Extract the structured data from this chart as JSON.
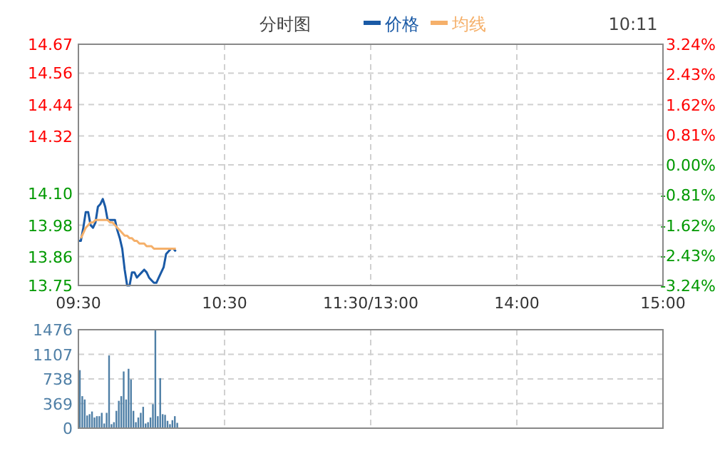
{
  "chart_data": [
    {
      "type": "line",
      "title": "分时图",
      "annotations": [
        "10:11"
      ],
      "legend": "top",
      "categories": [
        "09:30",
        null,
        null,
        null,
        null,
        null,
        null,
        null,
        null,
        null,
        null,
        null,
        null,
        null,
        null,
        null,
        null,
        null,
        null,
        null,
        null,
        null,
        null,
        null,
        null,
        null,
        null,
        null,
        null,
        null,
        null,
        null,
        null,
        null,
        null,
        null,
        null,
        null,
        null,
        null,
        null,
        null,
        null,
        null,
        null,
        null,
        null,
        null,
        null,
        null,
        null,
        null,
        null,
        null,
        null,
        null,
        null,
        null,
        null,
        null,
        "10:30",
        null,
        null,
        null,
        null,
        null,
        null,
        null,
        null,
        null,
        null,
        null,
        null,
        null,
        null,
        null,
        null,
        null,
        null,
        null,
        null,
        null,
        null,
        null,
        null,
        null,
        null,
        null,
        null,
        null,
        null,
        null,
        null,
        null,
        null,
        null,
        null,
        null,
        null,
        null,
        null,
        null,
        null,
        null,
        null,
        null,
        null,
        null,
        null,
        null,
        null,
        null,
        null,
        null,
        null,
        null,
        null,
        null,
        null,
        null,
        "11:30/13:00",
        null,
        null,
        null,
        null,
        null,
        null,
        null,
        null,
        null,
        null,
        null,
        null,
        null,
        null,
        null,
        null,
        null,
        null,
        null,
        null,
        null,
        null,
        null,
        null,
        null,
        null,
        null,
        null,
        null,
        null,
        null,
        null,
        null,
        null,
        null,
        null,
        null,
        null,
        null,
        null,
        null,
        null,
        null,
        null,
        null,
        null,
        null,
        null,
        null,
        null,
        null,
        null,
        null,
        null,
        null,
        null,
        null,
        null,
        null,
        "14:00",
        null,
        null,
        null,
        null,
        null,
        null,
        null,
        null,
        null,
        null,
        null,
        null,
        null,
        null,
        null,
        null,
        null,
        null,
        null,
        null,
        null,
        null,
        null,
        null,
        null,
        null,
        null,
        null,
        null,
        null,
        null,
        null,
        null,
        null,
        null,
        null,
        null,
        null,
        null,
        null,
        null,
        null,
        null,
        null,
        null,
        null,
        null,
        null,
        null,
        null,
        null,
        null,
        null,
        null,
        null,
        null,
        null,
        null,
        null,
        "15:00"
      ],
      "ylim": [
        13.75,
        14.67
      ],
      "yticks": [
        13.75,
        13.86,
        13.98,
        {
          "value": 14.1,
          "label": "14.10"
        },
        {
          "value": 14.21,
          "label": null
        },
        14.32,
        14.44,
        14.56,
        14.67
      ],
      "y2lim": [
        -3.24,
        3.24
      ],
      "y2ticks": [
        {
          "value": -3.24,
          "label": "-3.24%"
        },
        {
          "value": -2.43,
          "label": "-2.43%"
        },
        {
          "value": -1.62,
          "label": "-1.62%"
        },
        {
          "value": -0.81,
          "label": "-0.81%"
        },
        {
          "value": 0,
          "label": "0.00%"
        },
        {
          "value": 0.81,
          "label": "0.81%"
        },
        {
          "value": 1.62,
          "label": "1.62%"
        },
        {
          "value": 2.43,
          "label": "2.43%"
        },
        {
          "value": 3.24,
          "label": "3.24%"
        }
      ],
      "grid": true,
      "series": [
        {
          "name": "价格",
          "color": "#1a5aa6",
          "values": [
            13.92,
            13.92,
            13.97,
            14.03,
            14.03,
            13.98,
            13.97,
            13.99,
            14.05,
            14.06,
            14.08,
            14.05,
            14.0,
            14.0,
            14.0,
            14.0,
            13.96,
            13.93,
            13.89,
            13.81,
            13.75,
            13.75,
            13.8,
            13.8,
            13.78,
            13.79,
            13.8,
            13.81,
            13.8,
            13.78,
            13.77,
            13.76,
            13.76,
            13.78,
            13.8,
            13.82,
            13.87,
            13.88,
            13.89,
            13.89,
            13.88,
            null,
            null,
            null,
            null,
            null,
            null,
            null,
            null,
            null,
            null,
            null,
            null,
            null,
            null,
            null,
            null,
            null,
            null,
            null,
            null,
            null,
            null,
            null,
            null,
            null,
            null,
            null,
            null,
            null,
            null,
            null,
            null,
            null,
            null,
            null,
            null,
            null,
            null,
            null,
            null,
            null,
            null,
            null,
            null,
            null,
            null,
            null,
            null,
            null,
            null,
            null,
            null,
            null,
            null,
            null,
            null,
            null,
            null,
            null,
            null,
            null,
            null,
            null,
            null,
            null,
            null,
            null,
            null,
            null,
            null,
            null,
            null,
            null,
            null,
            null,
            null,
            null,
            null,
            null,
            null,
            null,
            null,
            null,
            null,
            null,
            null,
            null,
            null,
            null,
            null,
            null,
            null,
            null,
            null,
            null,
            null,
            null,
            null,
            null,
            null,
            null,
            null,
            null,
            null,
            null,
            null,
            null,
            null,
            null,
            null,
            null,
            null,
            null,
            null,
            null,
            null,
            null,
            null,
            null,
            null,
            null,
            null,
            null,
            null,
            null,
            null,
            null,
            null,
            null,
            null,
            null,
            null,
            null,
            null,
            null,
            null,
            null,
            null,
            null,
            null,
            null,
            null,
            null,
            null,
            null,
            null,
            null,
            null,
            null,
            null,
            null,
            null,
            null,
            null,
            null,
            null,
            null,
            null,
            null,
            null,
            null,
            null,
            null,
            null,
            null,
            null,
            null,
            null,
            null,
            null,
            null,
            null,
            null,
            null,
            null,
            null,
            null,
            null,
            null,
            null,
            null,
            null,
            null,
            null,
            null,
            null,
            null,
            null,
            null,
            null,
            null,
            null,
            null,
            null,
            null,
            null,
            null,
            null,
            null,
            null
          ]
        },
        {
          "name": "均线",
          "color": "#f5b06a",
          "values": [
            null,
            13.93,
            13.95,
            13.97,
            13.98,
            13.99,
            13.99,
            14.0,
            14.0,
            14.0,
            14.0,
            14.0,
            14.0,
            13.99,
            13.99,
            13.98,
            13.97,
            13.96,
            13.95,
            13.94,
            13.94,
            13.93,
            13.93,
            13.92,
            13.92,
            13.91,
            13.91,
            13.91,
            13.9,
            13.9,
            13.9,
            13.89,
            13.89,
            13.89,
            13.89,
            13.89,
            13.89,
            13.89,
            13.89,
            13.89,
            13.89,
            null,
            null,
            null,
            null,
            null,
            null,
            null,
            null,
            null,
            null,
            null,
            null,
            null,
            null,
            null,
            null,
            null,
            null,
            null,
            null,
            null,
            null,
            null,
            null,
            null,
            null,
            null,
            null,
            null,
            null,
            null,
            null,
            null,
            null,
            null,
            null,
            null,
            null,
            null,
            null,
            null,
            null,
            null,
            null,
            null,
            null,
            null,
            null,
            null,
            null,
            null,
            null,
            null,
            null,
            null,
            null,
            null,
            null,
            null,
            null,
            null,
            null,
            null,
            null,
            null,
            null,
            null,
            null,
            null,
            null,
            null,
            null,
            null,
            null,
            null,
            null,
            null,
            null,
            null,
            null,
            null,
            null,
            null,
            null,
            null,
            null,
            null,
            null,
            null,
            null,
            null,
            null,
            null,
            null,
            null,
            null,
            null,
            null,
            null,
            null,
            null,
            null,
            null,
            null,
            null,
            null,
            null,
            null,
            null,
            null,
            null,
            null,
            null,
            null,
            null,
            null,
            null,
            null,
            null,
            null,
            null,
            null,
            null,
            null,
            null,
            null,
            null,
            null,
            null,
            null,
            null,
            null,
            null,
            null,
            null,
            null,
            null,
            null,
            null,
            null,
            null,
            null,
            null,
            null,
            null,
            null,
            null,
            null,
            null,
            null,
            null,
            null,
            null,
            null,
            null,
            null,
            null,
            null,
            null,
            null,
            null,
            null,
            null,
            null,
            null,
            null,
            null,
            null,
            null,
            null,
            null,
            null,
            null,
            null,
            null,
            null,
            null,
            null,
            null,
            null,
            null,
            null,
            null,
            null,
            null,
            null,
            null,
            null,
            null,
            null,
            null,
            null,
            null,
            null,
            null,
            null,
            null,
            null,
            null,
            null
          ]
        }
      ]
    },
    {
      "type": "bar",
      "ylim": [
        0,
        1476
      ],
      "yticks": [
        0,
        369,
        738,
        1107,
        1476
      ],
      "grid": true,
      "tick_labels": "y",
      "color": "#4f7fa6",
      "categories": [
        null,
        null,
        null,
        null,
        null,
        null,
        null,
        null,
        null,
        null,
        null,
        null,
        null,
        null,
        null,
        null,
        null,
        null,
        null,
        null,
        null,
        null,
        null,
        null,
        null,
        null,
        null,
        null,
        null,
        null,
        null,
        null,
        null,
        null,
        null,
        null,
        null,
        null,
        null,
        null,
        null,
        null,
        null,
        null,
        null,
        null,
        null,
        null,
        null,
        null,
        null,
        null,
        null,
        null,
        null,
        null,
        null,
        null,
        null,
        null,
        null,
        null,
        null,
        null,
        null,
        null,
        null,
        null,
        null,
        null,
        null,
        null,
        null,
        null,
        null,
        null,
        null,
        null,
        null,
        null,
        null,
        null,
        null,
        null,
        null,
        null,
        null,
        null,
        null,
        null,
        null,
        null,
        null,
        null,
        null,
        null,
        null,
        null,
        null,
        null,
        null,
        null,
        null,
        null,
        null,
        null,
        null,
        null,
        null,
        null,
        null,
        null,
        null,
        null,
        null,
        null,
        null,
        null,
        null,
        null,
        null,
        null,
        null,
        null,
        null,
        null,
        null,
        null,
        null,
        null,
        null,
        null,
        null,
        null,
        null,
        null,
        null,
        null,
        null,
        null,
        null,
        null,
        null,
        null,
        null,
        null,
        null,
        null,
        null,
        null,
        null,
        null,
        null,
        null,
        null,
        null,
        null,
        null,
        null,
        null,
        null,
        null,
        null,
        null,
        null,
        null,
        null,
        null,
        null,
        null,
        null,
        null,
        null,
        null,
        null,
        null,
        null,
        null,
        null,
        null,
        null,
        null,
        null,
        null,
        null,
        null,
        null,
        null,
        null,
        null,
        null,
        null,
        null,
        null,
        null,
        null,
        null,
        null,
        null,
        null,
        null,
        null,
        null,
        null,
        null,
        null,
        null,
        null,
        null,
        null,
        null,
        null,
        null,
        null,
        null,
        null,
        null,
        null,
        null,
        null,
        null,
        null,
        null,
        null,
        null,
        null,
        null,
        null,
        null,
        null,
        null,
        null,
        null,
        null,
        null,
        null,
        null,
        null,
        null,
        null,
        null
      ],
      "values": [
        870,
        480,
        430,
        190,
        210,
        250,
        160,
        180,
        180,
        230,
        70,
        230,
        1090,
        60,
        90,
        260,
        410,
        480,
        850,
        430,
        890,
        730,
        260,
        90,
        160,
        230,
        320,
        70,
        90,
        160,
        360,
        1470,
        180,
        750,
        210,
        200,
        110,
        60,
        120,
        180,
        80,
        null,
        null,
        null,
        null,
        null,
        null,
        null,
        null,
        null,
        null,
        null,
        null,
        null,
        null,
        null,
        null,
        null,
        null,
        null,
        null,
        null,
        null,
        null,
        null,
        null,
        null,
        null,
        null,
        null,
        null,
        null,
        null,
        null,
        null,
        null,
        null,
        null,
        null,
        null,
        null,
        null,
        null,
        null,
        null,
        null,
        null,
        null,
        null,
        null,
        null,
        null,
        null,
        null,
        null,
        null,
        null,
        null,
        null,
        null,
        null,
        null,
        null,
        null,
        null,
        null,
        null,
        null,
        null,
        null,
        null,
        null,
        null,
        null,
        null,
        null,
        null,
        null,
        null,
        null,
        null,
        null,
        null,
        null,
        null,
        null,
        null,
        null,
        null,
        null,
        null,
        null,
        null,
        null,
        null,
        null,
        null,
        null,
        null,
        null,
        null,
        null,
        null,
        null,
        null,
        null,
        null,
        null,
        null,
        null,
        null,
        null,
        null,
        null,
        null,
        null,
        null,
        null,
        null,
        null,
        null,
        null,
        null,
        null,
        null,
        null,
        null,
        null,
        null,
        null,
        null,
        null,
        null,
        null,
        null,
        null,
        null,
        null,
        null,
        null,
        null,
        null,
        null,
        null,
        null,
        null,
        null,
        null,
        null,
        null,
        null,
        null,
        null,
        null,
        null,
        null,
        null,
        null,
        null,
        null,
        null,
        null,
        null,
        null,
        null,
        null,
        null,
        null,
        null,
        null,
        null,
        null,
        null,
        null,
        null,
        null,
        null,
        null,
        null,
        null,
        null,
        null,
        null,
        null,
        null,
        null,
        null,
        null,
        null,
        null,
        null,
        null,
        null,
        null,
        null,
        null,
        null,
        null,
        null,
        null,
        null
      ]
    }
  ]
}
